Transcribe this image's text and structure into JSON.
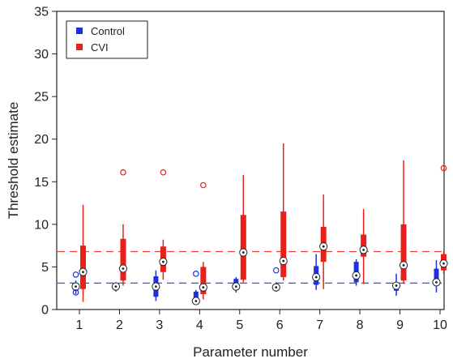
{
  "chart_data": {
    "type": "boxplot",
    "xlabel": "Parameter number",
    "ylabel": "Threshold estimate",
    "categories": [
      "1",
      "2",
      "3",
      "4",
      "5",
      "6",
      "7",
      "8",
      "9",
      "10"
    ],
    "ylim": [
      0,
      35
    ],
    "yticks": [
      0,
      5,
      10,
      15,
      20,
      25,
      30,
      35
    ],
    "grid": false,
    "legend_position": "top-left",
    "series": [
      {
        "name": "Control",
        "color": "#1f2fe0",
        "reference_line": 3.1,
        "boxes": [
          {
            "whisker_low": 1.8,
            "q1": 2.2,
            "median": 2.7,
            "q3": 3.1,
            "whisker_high": 3.4,
            "outliers": [
              4.1,
              2.0
            ]
          },
          {
            "whisker_low": 2.1,
            "q1": 2.3,
            "median": 2.7,
            "q3": 3.0,
            "whisker_high": 3.2,
            "outliers": []
          },
          {
            "whisker_low": 1.0,
            "q1": 1.5,
            "median": 2.7,
            "q3": 3.9,
            "whisker_high": 4.6,
            "outliers": []
          },
          {
            "whisker_low": 0.6,
            "q1": 0.8,
            "median": 1.0,
            "q3": 2.1,
            "whisker_high": 2.3,
            "outliers": [
              4.2
            ]
          },
          {
            "whisker_low": 2.0,
            "q1": 2.4,
            "median": 2.7,
            "q3": 3.6,
            "whisker_high": 3.8,
            "outliers": []
          },
          {
            "whisker_low": 2.1,
            "q1": 2.3,
            "median": 2.6,
            "q3": 3.0,
            "whisker_high": 3.2,
            "outliers": [
              4.6
            ]
          },
          {
            "whisker_low": 2.3,
            "q1": 2.9,
            "median": 3.8,
            "q3": 5.1,
            "whisker_high": 6.5,
            "outliers": []
          },
          {
            "whisker_low": 2.8,
            "q1": 3.2,
            "median": 4.0,
            "q3": 5.6,
            "whisker_high": 5.9,
            "outliers": []
          },
          {
            "whisker_low": 1.6,
            "q1": 2.2,
            "median": 2.8,
            "q3": 3.0,
            "whisker_high": 4.2,
            "outliers": []
          },
          {
            "whisker_low": 2.0,
            "q1": 2.8,
            "median": 3.2,
            "q3": 4.8,
            "whisker_high": 5.8,
            "outliers": []
          }
        ]
      },
      {
        "name": "CVI",
        "color": "#e8201c",
        "reference_line": 6.8,
        "boxes": [
          {
            "whisker_low": 0.9,
            "q1": 2.4,
            "median": 4.4,
            "q3": 7.5,
            "whisker_high": 12.3,
            "outliers": []
          },
          {
            "whisker_low": 2.8,
            "q1": 3.4,
            "median": 4.8,
            "q3": 8.3,
            "whisker_high": 10.0,
            "outliers": [
              16.1
            ]
          },
          {
            "whisker_low": 3.5,
            "q1": 4.4,
            "median": 5.6,
            "q3": 7.4,
            "whisker_high": 8.2,
            "outliers": [
              16.1
            ]
          },
          {
            "whisker_low": 1.2,
            "q1": 1.8,
            "median": 2.6,
            "q3": 5.0,
            "whisker_high": 5.6,
            "outliers": [
              14.6
            ]
          },
          {
            "whisker_low": 3.2,
            "q1": 3.5,
            "median": 6.7,
            "q3": 11.1,
            "whisker_high": 15.8,
            "outliers": []
          },
          {
            "whisker_low": 3.4,
            "q1": 3.8,
            "median": 5.7,
            "q3": 11.5,
            "whisker_high": 19.5,
            "outliers": []
          },
          {
            "whisker_low": 2.4,
            "q1": 5.6,
            "median": 7.4,
            "q3": 9.7,
            "whisker_high": 13.5,
            "outliers": []
          },
          {
            "whisker_low": 3.0,
            "q1": 6.2,
            "median": 7.0,
            "q3": 8.8,
            "whisker_high": 11.8,
            "outliers": []
          },
          {
            "whisker_low": 3.0,
            "q1": 3.4,
            "median": 5.2,
            "q3": 10.0,
            "whisker_high": 17.5,
            "outliers": []
          },
          {
            "whisker_low": 4.2,
            "q1": 4.6,
            "median": 5.4,
            "q3": 6.5,
            "whisker_high": 6.8,
            "outliers": [
              16.6
            ]
          }
        ]
      }
    ]
  }
}
